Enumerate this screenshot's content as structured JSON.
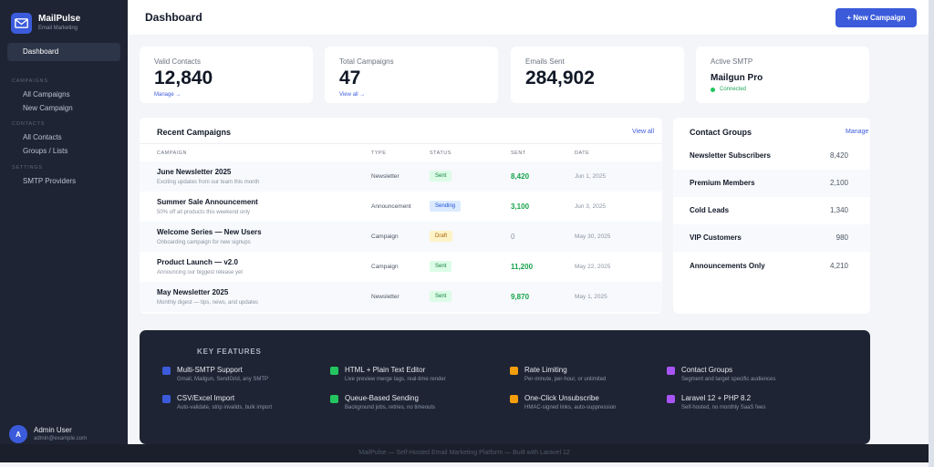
{
  "brand": {
    "name": "MailPulse",
    "subtitle": "Email Marketing"
  },
  "sidebar": {
    "active": "Dashboard",
    "sections": [
      {
        "title": "CAMPAIGNS",
        "items": [
          "All Campaigns",
          "New Campaign"
        ]
      },
      {
        "title": "CONTACTS",
        "items": [
          "All Contacts",
          "Groups / Lists"
        ]
      },
      {
        "title": "SETTINGS",
        "items": [
          "SMTP Providers"
        ]
      }
    ]
  },
  "user": {
    "initial": "A",
    "name": "Admin User",
    "email": "admin@example.com"
  },
  "header": {
    "title": "Dashboard",
    "new_button": "+ New Campaign"
  },
  "stats": {
    "valid_contacts": {
      "label": "Valid Contacts",
      "value": "12,840",
      "link": "Manage →"
    },
    "total_campaigns": {
      "label": "Total Campaigns",
      "value": "47",
      "link": "View all →"
    },
    "emails_sent": {
      "label": "Emails Sent",
      "value": "284,902"
    },
    "active_smtp": {
      "label": "Active SMTP",
      "value": "Mailgun Pro",
      "status": "Connected"
    }
  },
  "recent": {
    "title": "Recent Campaigns",
    "view_all": "View all",
    "columns": [
      "CAMPAIGN",
      "TYPE",
      "STATUS",
      "SENT",
      "DATE"
    ],
    "rows": [
      {
        "name": "June Newsletter 2025",
        "desc": "Exciting updates from our team this month",
        "type": "Newsletter",
        "status": "Sent",
        "sent": "8,420",
        "date": "Jun 1, 2025"
      },
      {
        "name": "Summer Sale Announcement",
        "desc": "50% off all products this weekend only",
        "type": "Announcement",
        "status": "Sending",
        "sent": "3,100",
        "date": "Jun 3, 2025"
      },
      {
        "name": "Welcome Series — New Users",
        "desc": "Onboarding campaign for new signups",
        "type": "Campaign",
        "status": "Draft",
        "sent": "0",
        "date": "May 30, 2025"
      },
      {
        "name": "Product Launch — v2.0",
        "desc": "Announcing our biggest release yet",
        "type": "Campaign",
        "status": "Sent",
        "sent": "11,200",
        "date": "May 22, 2025"
      },
      {
        "name": "May Newsletter 2025",
        "desc": "Monthly digest — tips, news, and updates",
        "type": "Newsletter",
        "status": "Sent",
        "sent": "9,870",
        "date": "May 1, 2025"
      }
    ]
  },
  "groups": {
    "title": "Contact Groups",
    "manage": "Manage",
    "rows": [
      {
        "name": "Newsletter Subscribers",
        "count": "8,420"
      },
      {
        "name": "Premium Members",
        "count": "2,100"
      },
      {
        "name": "Cold Leads",
        "count": "1,340"
      },
      {
        "name": "VIP Customers",
        "count": "980"
      },
      {
        "name": "Announcements Only",
        "count": "4,210"
      }
    ]
  },
  "features": {
    "heading": "KEY FEATURES",
    "items": [
      {
        "title": "Multi-SMTP Support",
        "desc": "Gmail, Mailgun, SendGrid, any SMTP",
        "color": "#3b5bdb"
      },
      {
        "title": "HTML + Plain Text Editor",
        "desc": "Live preview merge tags, real-time render",
        "color": "#22c55e"
      },
      {
        "title": "Rate Limiting",
        "desc": "Per-minute, per-hour, or unlimited",
        "color": "#f59e0b"
      },
      {
        "title": "Contact Groups",
        "desc": "Segment and target specific audiences",
        "color": "#a855f7"
      },
      {
        "title": "CSV/Excel Import",
        "desc": "Auto-validate, strip invalids, bulk import",
        "color": "#3b5bdb"
      },
      {
        "title": "Queue-Based Sending",
        "desc": "Background jobs, retries, no timeouts",
        "color": "#22c55e"
      },
      {
        "title": "One-Click Unsubscribe",
        "desc": "HMAC-signed links, auto-suppression",
        "color": "#f59e0b"
      },
      {
        "title": "Laravel 12 + PHP 8.2",
        "desc": "Self-hosted, no monthly SaaS fees",
        "color": "#a855f7"
      }
    ]
  },
  "footer": {
    "text": "MailPulse — Self-Hosted Email Marketing Platform — Built with Laravel 12"
  },
  "colors": {
    "accent": "#3b5bdb",
    "sidebar": "#1e2433",
    "success": "#16a34a"
  }
}
